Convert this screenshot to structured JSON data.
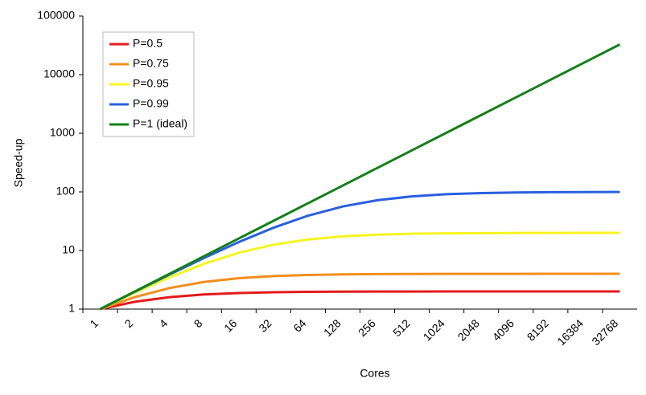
{
  "chart_data": {
    "type": "line",
    "x_label": "Cores",
    "y_label": "Speed-up",
    "categories": [
      "1",
      "2",
      "4",
      "8",
      "16",
      "32",
      "64",
      "128",
      "256",
      "512",
      "1024",
      "2048",
      "4096",
      "8192",
      "16384",
      "32768"
    ],
    "log_y": true,
    "ylim": [
      1,
      100000
    ],
    "yticks": [
      1,
      10,
      100,
      1000,
      10000,
      100000
    ],
    "grid": false,
    "legend": "upper-left",
    "series": [
      {
        "name": "P=0.5",
        "color": "#e31a1c",
        "values": [
          1,
          1.333,
          1.6,
          1.778,
          1.882,
          1.939,
          1.969,
          1.984,
          1.992,
          1.996,
          1.998,
          1.999,
          2,
          2,
          2,
          2
        ]
      },
      {
        "name": "P=0.75",
        "color": "#f28e1c",
        "values": [
          1,
          1.6,
          2.286,
          2.909,
          3.368,
          3.657,
          3.82,
          3.908,
          3.954,
          3.977,
          3.988,
          3.994,
          3.997,
          3.999,
          3.999,
          4
        ]
      },
      {
        "name": "P=0.95",
        "color": "#f5f520",
        "values": [
          1,
          1.905,
          3.478,
          5.926,
          9.143,
          12.549,
          15.421,
          17.414,
          18.618,
          19.284,
          19.636,
          19.817,
          19.908,
          19.954,
          19.977,
          19.988
        ]
      },
      {
        "name": "P=0.99",
        "color": "#2a5fe0",
        "values": [
          1,
          1.98,
          3.883,
          7.477,
          13.913,
          24.427,
          39.264,
          56.388,
          72.113,
          83.797,
          91.18,
          95.35,
          97.63,
          98.8,
          99.39,
          99.7
        ]
      },
      {
        "name": "P=1 (ideal)",
        "color": "#13801a",
        "values": [
          1,
          2,
          4,
          8,
          16,
          32,
          64,
          128,
          256,
          512,
          1024,
          2048,
          4096,
          8192,
          16384,
          32768
        ]
      }
    ]
  }
}
